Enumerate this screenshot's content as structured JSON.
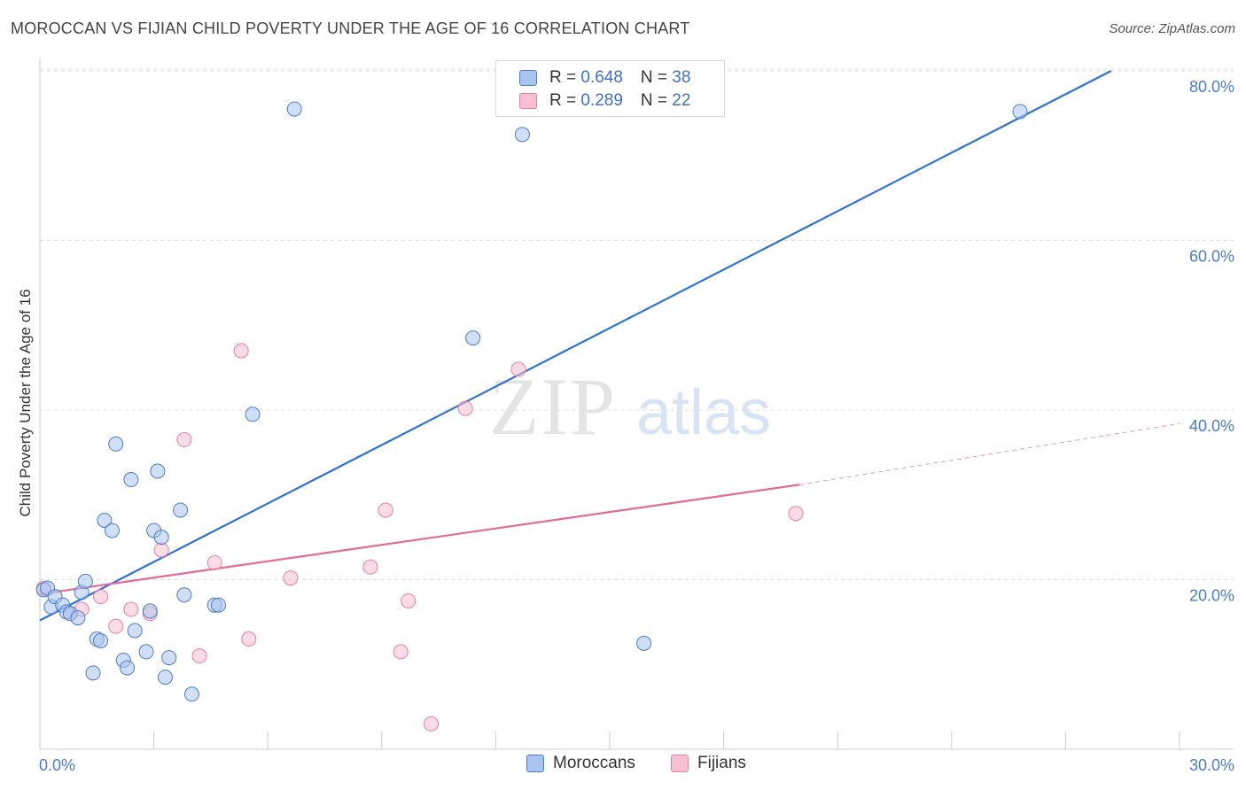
{
  "title": "MOROCCAN VS FIJIAN CHILD POVERTY UNDER THE AGE OF 16 CORRELATION CHART",
  "source": "Source: ZipAtlas.com",
  "watermark": {
    "zip": "ZIP",
    "atlas": "atlas"
  },
  "colors": {
    "blue": "#4a7cc9",
    "blue_fill": "#a9c5ef",
    "blue_line": "#2f72d0",
    "pink": "#e77fa3",
    "pink_fill": "#f7c0d2",
    "pink_line": "#e36b96"
  },
  "legend": {
    "rows": [
      {
        "r_label": "R = ",
        "r_value": "0.648",
        "n_label": "N = ",
        "n_value": "38"
      },
      {
        "r_label": "R = ",
        "r_value": "0.289",
        "n_label": "N = ",
        "n_value": "22"
      }
    ]
  },
  "bottom_legend": {
    "moroccans": "Moroccans",
    "fijians": "Fijians"
  },
  "chart_data": {
    "type": "scatter",
    "title": "MOROCCAN VS FIJIAN CHILD POVERTY UNDER THE AGE OF 16 CORRELATION CHART",
    "xlabel": "",
    "ylabel": "Child Poverty Under the Age of 16",
    "xlim": [
      0,
      30
    ],
    "ylim": [
      0,
      80
    ],
    "x_tick_labels": [
      "0.0%",
      "30.0%"
    ],
    "y_tick_labels": [
      "20.0%",
      "40.0%",
      "60.0%",
      "80.0%"
    ],
    "y_ticks": [
      20,
      40,
      60,
      80
    ],
    "x_minor_ticks": [
      0,
      3,
      6,
      9,
      12,
      15,
      18,
      21,
      24,
      27,
      30
    ],
    "series": [
      {
        "name": "Moroccans",
        "R": 0.648,
        "N": 38,
        "trend": {
          "x0": 0,
          "y0": 15.2,
          "x1": 28.2,
          "y1": 80
        },
        "points": [
          [
            0.1,
            18.8
          ],
          [
            0.2,
            19.0
          ],
          [
            0.3,
            16.8
          ],
          [
            0.4,
            18.0
          ],
          [
            0.6,
            17.0
          ],
          [
            0.7,
            16.2
          ],
          [
            0.8,
            16.0
          ],
          [
            1.0,
            15.5
          ],
          [
            1.1,
            18.5
          ],
          [
            1.2,
            19.8
          ],
          [
            1.4,
            9.0
          ],
          [
            1.5,
            13.0
          ],
          [
            1.6,
            12.8
          ],
          [
            1.7,
            27.0
          ],
          [
            1.9,
            25.8
          ],
          [
            2.0,
            36.0
          ],
          [
            2.2,
            10.5
          ],
          [
            2.3,
            9.6
          ],
          [
            2.4,
            31.8
          ],
          [
            2.5,
            14.0
          ],
          [
            2.8,
            11.5
          ],
          [
            2.9,
            16.3
          ],
          [
            3.0,
            25.8
          ],
          [
            3.1,
            32.8
          ],
          [
            3.2,
            25.0
          ],
          [
            3.3,
            8.5
          ],
          [
            3.4,
            10.8
          ],
          [
            3.7,
            28.2
          ],
          [
            3.8,
            18.2
          ],
          [
            4.0,
            6.5
          ],
          [
            4.6,
            17.0
          ],
          [
            4.7,
            17.0
          ],
          [
            5.6,
            39.5
          ],
          [
            6.7,
            75.5
          ],
          [
            11.4,
            48.5
          ],
          [
            12.7,
            72.5
          ],
          [
            15.9,
            12.5
          ],
          [
            25.8,
            75.2
          ]
        ]
      },
      {
        "name": "Fijians",
        "R": 0.289,
        "N": 22,
        "trend": {
          "x0": 0,
          "y0": 18.3,
          "x1": 20.0,
          "y1": 31.2,
          "x_dash_end": 30.0,
          "y_dash_end": 38.4
        },
        "points": [
          [
            0.1,
            19.0
          ],
          [
            0.8,
            16.0
          ],
          [
            1.1,
            16.5
          ],
          [
            1.6,
            18.0
          ],
          [
            2.0,
            14.5
          ],
          [
            2.4,
            16.5
          ],
          [
            2.9,
            16.0
          ],
          [
            3.2,
            23.5
          ],
          [
            3.8,
            36.5
          ],
          [
            4.2,
            11.0
          ],
          [
            4.6,
            22.0
          ],
          [
            5.3,
            47.0
          ],
          [
            5.5,
            13.0
          ],
          [
            6.6,
            20.2
          ],
          [
            8.7,
            21.5
          ],
          [
            9.1,
            28.2
          ],
          [
            9.5,
            11.5
          ],
          [
            9.7,
            17.5
          ],
          [
            10.3,
            3.0
          ],
          [
            11.2,
            40.2
          ],
          [
            12.6,
            44.8
          ],
          [
            19.9,
            27.8
          ]
        ]
      }
    ]
  }
}
